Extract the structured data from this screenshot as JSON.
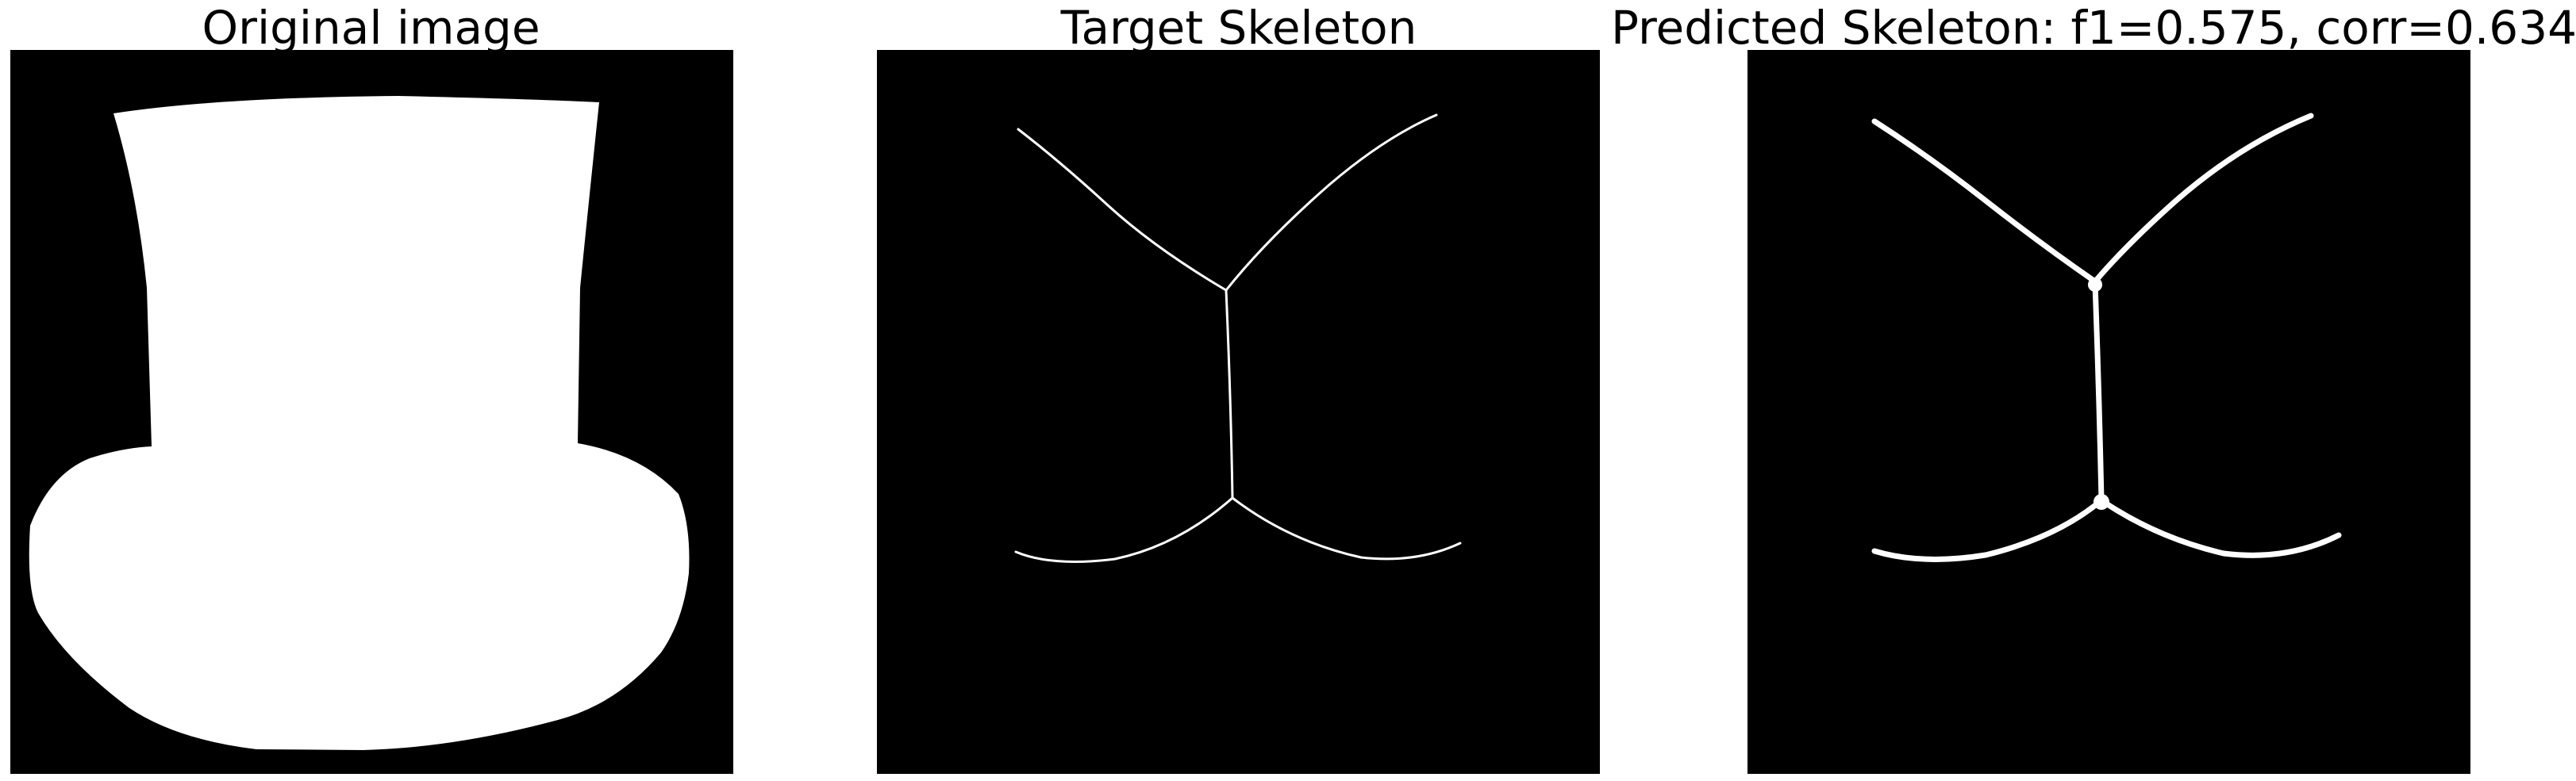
{
  "panels": [
    {
      "title": "Original image"
    },
    {
      "title": "Target Skeleton"
    },
    {
      "title": "Predicted Skeleton: f1=0.575, corr=0.634"
    }
  ],
  "colors": {
    "background": "#000000",
    "foreground": "#ffffff",
    "page": "#ffffff"
  }
}
